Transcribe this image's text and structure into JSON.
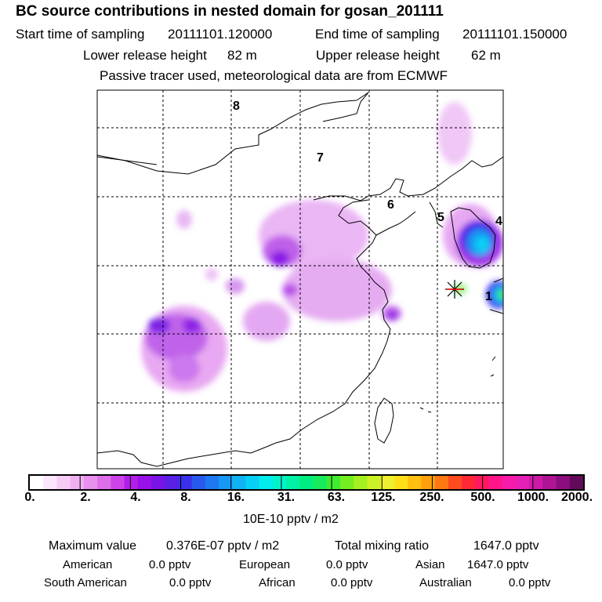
{
  "title": "BC  source contributions in nested domain for gosan_201111",
  "header": {
    "start_label": "Start time of sampling",
    "start_value": "20111101.120000",
    "end_label": "End time of sampling",
    "end_value": "20111101.150000",
    "lower_label": "Lower release height",
    "lower_value": "82 m",
    "upper_label": "Upper release height",
    "upper_value": "62 m",
    "tracer_note": "Passive tracer used, meteorological data are from ECMWF"
  },
  "map": {
    "region_labels": [
      "8",
      "7",
      "6",
      "5",
      "4",
      "1"
    ],
    "receptor_symbol": "station-star"
  },
  "colorbar": {
    "tick_labels": [
      "0.",
      "2.",
      "4.",
      "8.",
      "16.",
      "31.",
      "63.",
      "125.",
      "250.",
      "500.",
      "1000.",
      "2000."
    ],
    "colors": [
      "#ffffff",
      "#fbe6fb",
      "#f6ccf6",
      "#f0b0f0",
      "#e890ee",
      "#dd70ea",
      "#cc44e8",
      "#b41ee8",
      "#9a10e8",
      "#7a14e6",
      "#5a20e6",
      "#3a30ea",
      "#2858ee",
      "#1e78f0",
      "#1898f2",
      "#10b4f4",
      "#08d0f4",
      "#00ecec",
      "#00f2cc",
      "#00f0a4",
      "#00ee80",
      "#18ec5c",
      "#40ec30",
      "#74ee20",
      "#a4f020",
      "#ccf226",
      "#eef030",
      "#ffe018",
      "#ffc010",
      "#ffa00c",
      "#ff7814",
      "#ff4c1e",
      "#ff2836",
      "#ff1860",
      "#ff148a",
      "#f81aa8",
      "#e620b4",
      "#cc1aa6",
      "#ae1494",
      "#8c0e7e",
      "#640a5a"
    ],
    "unit": "10E-10 pptv / m2"
  },
  "summary": {
    "max_label": "Maximum value",
    "max_value": "0.376E-07 pptv / m2",
    "total_label": "Total mixing ratio",
    "total_value": "1647.0 pptv"
  },
  "contributions": [
    {
      "region": "American",
      "value": "0.0 pptv"
    },
    {
      "region": "European",
      "value": "0.0 pptv"
    },
    {
      "region": "Asian",
      "value": "1647.0 pptv"
    },
    {
      "region": "South American",
      "value": "0.0 pptv"
    },
    {
      "region": "African",
      "value": "0.0 pptv"
    },
    {
      "region": "Australian",
      "value": "0.0 pptv"
    }
  ]
}
